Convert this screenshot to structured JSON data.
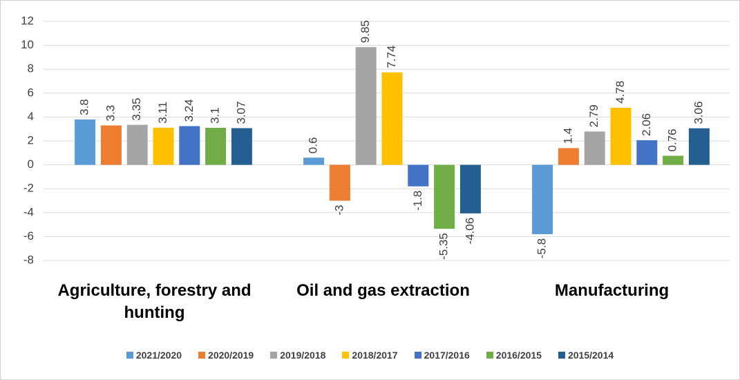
{
  "chart_data": {
    "type": "bar",
    "categories": [
      "Agriculture, forestry and hunting",
      "Oil and gas extraction",
      "Manufacturing"
    ],
    "series": [
      {
        "name": "2021/2020",
        "color": "#5b9bd5",
        "values": [
          3.8,
          0.6,
          -5.8
        ]
      },
      {
        "name": "2020/2019",
        "color": "#ed7d31",
        "values": [
          3.3,
          -3,
          1.4
        ]
      },
      {
        "name": "2019/2018",
        "color": "#a5a5a5",
        "values": [
          3.35,
          9.85,
          2.79
        ]
      },
      {
        "name": "2018/2017",
        "color": "#ffc000",
        "values": [
          3.11,
          7.74,
          4.78
        ]
      },
      {
        "name": "2017/2016",
        "color": "#4472c4",
        "values": [
          3.24,
          -1.8,
          2.06
        ]
      },
      {
        "name": "2016/2015",
        "color": "#70ad47",
        "values": [
          3.1,
          -5.35,
          0.76
        ]
      },
      {
        "name": "2015/2014",
        "color": "#255e91",
        "values": [
          3.07,
          -4.06,
          3.06
        ]
      }
    ],
    "ylim": [
      -8,
      12
    ],
    "yticks": [
      -8,
      -6,
      -4,
      -2,
      0,
      2,
      4,
      6,
      8,
      10,
      12
    ],
    "grid": true,
    "legend": "bottom"
  }
}
